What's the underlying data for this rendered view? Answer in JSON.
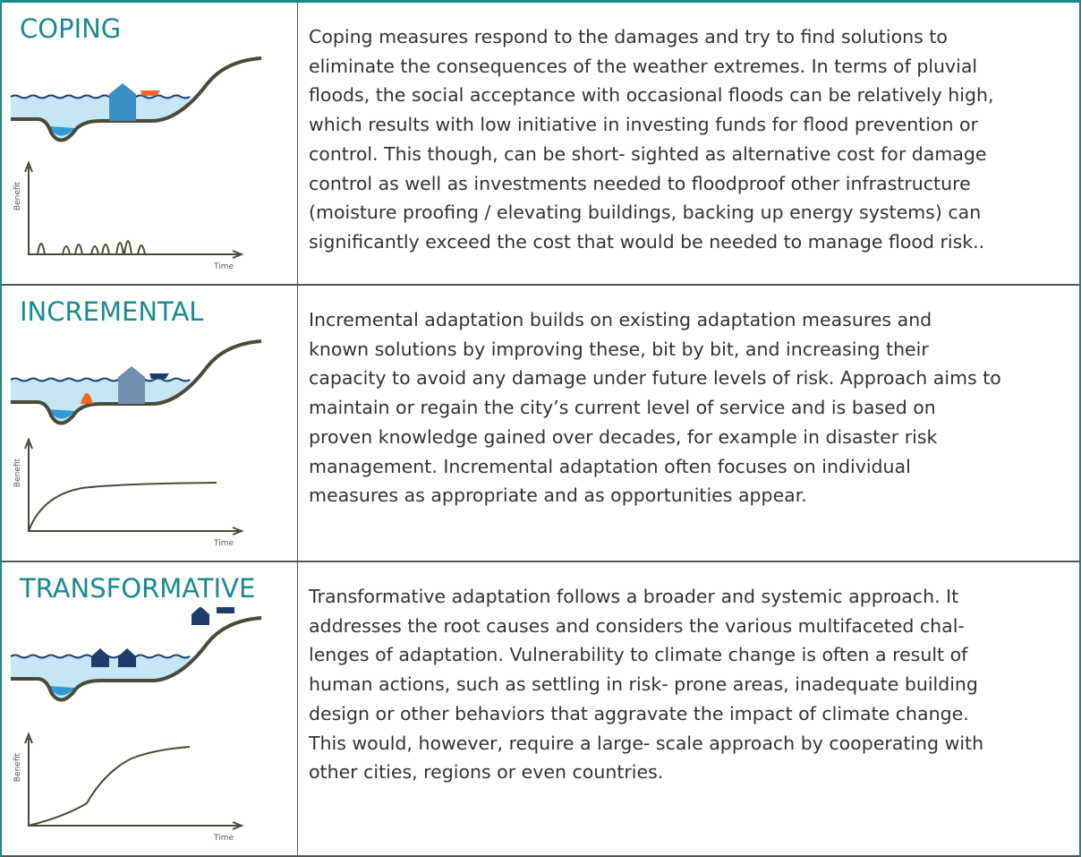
{
  "rows": [
    {
      "title": "COPING",
      "lines": [
        "Coping measures respond to the damages and try to find solutions to",
        "eliminate the consequences of the weather extremes. In terms of pluvial",
        "floods, the social acceptance with occasional floods can be relatively high,",
        "which results with low initiative in investing funds for flood prevention or",
        "control. This though, can be short- sighted as alternative cost for damage",
        "control as well as investments needed to floodproof other infrastructure",
        "(moisture proofing / elevating buildings, backing up energy systems) can",
        "significantly exceed the cost that would be needed to manage flood risk.."
      ],
      "graph": {
        "y_label": "Benefit",
        "x_label": "Time"
      }
    },
    {
      "title": "INCREMENTAL",
      "lines": [
        "Incremental adaptation builds on existing adaptation measures and",
        "known solutions by improving these, bit by bit, and increasing their",
        "capacity to avoid any damage under future levels of risk. Approach aims to",
        "maintain or regain the city’s current level of service and is based on",
        "proven knowledge gained over decades, for example in disaster risk",
        "management. Incremental adaptation often focuses on individual",
        "measures as appropriate and as opportunities appear."
      ],
      "graph": {
        "y_label": "Benefit",
        "x_label": "Time"
      }
    },
    {
      "title": "TRANSFORMATIVE",
      "lines": [
        "Transformative adaptation follows a broader and systemic approach. It",
        "addresses the root causes and considers the various multifaceted chal-",
        "lenges of adaptation. Vulnerability to climate change is often a result of",
        "human actions, such as settling in risk- prone areas, inadequate building",
        "design or other behaviors that aggravate the impact of climate change.",
        "This would, however, require a large- scale approach by cooperating with",
        "other cities, regions or even countries."
      ],
      "graph": {
        "y_label": "Benefit",
        "x_label": "Time"
      }
    }
  ]
}
